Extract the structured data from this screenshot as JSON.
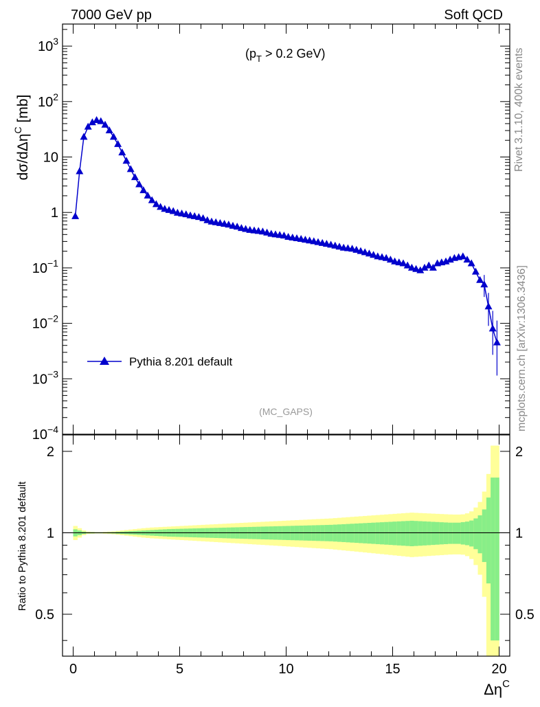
{
  "header": {
    "left": "7000 GeV pp",
    "right": "Soft QCD"
  },
  "side_text": {
    "rivet": "Rivet 3.1.10,  400k events",
    "mcplots": "mcplots.cern.ch [arXiv:1306.3436]"
  },
  "chart_data": [
    {
      "type": "line",
      "title": "",
      "annotation": "(p_T > 0.2 GeV)",
      "annotation_parts": {
        "a": "(p",
        "sub": "T",
        "b": " > 0.2 GeV)"
      },
      "analysis_label": "(MC_GAPS)",
      "ylabel": "dσ/dΔη^C [mb]",
      "ylabel_parts": {
        "main": "dσ/dΔη",
        "sup": "C",
        "unit": " [mb]"
      },
      "yscale": "log",
      "ylim": [
        0.0001,
        2500
      ],
      "xlim": [
        -0.5,
        20.5
      ],
      "y_ticks": [
        {
          "value": 1000,
          "base": "10",
          "exp": "3"
        },
        {
          "value": 100,
          "base": "10",
          "exp": "2"
        },
        {
          "value": 10,
          "base": "10",
          "exp": ""
        },
        {
          "value": 1,
          "base": "1",
          "exp": ""
        },
        {
          "value": 0.1,
          "base": "10",
          "exp": "−1"
        },
        {
          "value": 0.01,
          "base": "10",
          "exp": "−2"
        },
        {
          "value": 0.001,
          "base": "10",
          "exp": "−3"
        },
        {
          "value": 0.0001,
          "base": "10",
          "exp": "−4"
        }
      ],
      "legend_position": "bottom-left",
      "series": [
        {
          "name": "Pythia 8.201 default",
          "color": "#0000cc",
          "marker": "triangle",
          "x": [
            0.1,
            0.3,
            0.5,
            0.7,
            0.9,
            1.1,
            1.3,
            1.5,
            1.7,
            1.9,
            2.1,
            2.3,
            2.5,
            2.7,
            2.9,
            3.1,
            3.3,
            3.5,
            3.7,
            3.9,
            4.1,
            4.3,
            4.5,
            4.7,
            4.9,
            5.1,
            5.3,
            5.5,
            5.7,
            5.9,
            6.1,
            6.3,
            6.5,
            6.7,
            6.9,
            7.1,
            7.3,
            7.5,
            7.7,
            7.9,
            8.1,
            8.3,
            8.5,
            8.7,
            8.9,
            9.1,
            9.3,
            9.5,
            9.7,
            9.9,
            10.1,
            10.3,
            10.5,
            10.7,
            10.9,
            11.1,
            11.3,
            11.5,
            11.7,
            11.9,
            12.1,
            12.3,
            12.5,
            12.7,
            12.9,
            13.1,
            13.3,
            13.5,
            13.7,
            13.9,
            14.1,
            14.3,
            14.5,
            14.7,
            14.9,
            15.1,
            15.3,
            15.5,
            15.7,
            15.9,
            16.1,
            16.3,
            16.5,
            16.7,
            16.9,
            17.1,
            17.3,
            17.5,
            17.7,
            17.9,
            18.1,
            18.3,
            18.5,
            18.7,
            18.9,
            19.1,
            19.3,
            19.5,
            19.7,
            19.9
          ],
          "y": [
            0.85,
            5.5,
            23,
            35,
            42,
            46,
            44,
            38,
            30,
            23,
            17,
            12,
            8.5,
            6,
            4.3,
            3.2,
            2.5,
            2.0,
            1.65,
            1.4,
            1.25,
            1.15,
            1.1,
            1.05,
            0.98,
            0.95,
            0.92,
            0.88,
            0.85,
            0.82,
            0.78,
            0.72,
            0.68,
            0.66,
            0.64,
            0.62,
            0.6,
            0.57,
            0.55,
            0.52,
            0.5,
            0.48,
            0.47,
            0.46,
            0.45,
            0.43,
            0.41,
            0.4,
            0.39,
            0.38,
            0.36,
            0.35,
            0.34,
            0.33,
            0.32,
            0.31,
            0.3,
            0.29,
            0.28,
            0.27,
            0.26,
            0.25,
            0.24,
            0.23,
            0.225,
            0.22,
            0.21,
            0.2,
            0.19,
            0.18,
            0.17,
            0.16,
            0.155,
            0.15,
            0.14,
            0.13,
            0.125,
            0.12,
            0.11,
            0.1,
            0.095,
            0.09,
            0.1,
            0.11,
            0.1,
            0.12,
            0.125,
            0.13,
            0.14,
            0.15,
            0.155,
            0.16,
            0.14,
            0.12,
            0.085,
            0.06,
            0.05,
            0.02,
            0.008,
            0.0045
          ]
        }
      ]
    },
    {
      "type": "area",
      "ylabel": "Ratio to Pythia 8.201 default",
      "xlabel": "Δη^C",
      "xlabel_parts": {
        "main": "Δη",
        "sup": "C"
      },
      "ylim": [
        0.35,
        2.3
      ],
      "xlim": [
        -0.5,
        20.5
      ],
      "x_ticks": [
        0,
        5,
        10,
        15,
        20
      ],
      "y_ticks": [
        0.5,
        1,
        2
      ],
      "reference_line": 1,
      "band_colors": {
        "outer": "#ffff99",
        "inner": "#88ee88"
      },
      "bins_x": [
        0.1,
        0.3,
        0.5,
        0.7,
        0.9,
        1.1,
        1.3,
        1.5,
        1.7,
        1.9,
        2.1,
        2.3,
        2.5,
        2.7,
        2.9,
        3.1,
        3.3,
        3.5,
        3.7,
        3.9,
        4.1,
        4.3,
        4.5,
        4.7,
        4.9,
        5.1,
        5.3,
        5.5,
        5.7,
        5.9,
        6.1,
        6.3,
        6.5,
        6.7,
        6.9,
        7.1,
        7.3,
        7.5,
        7.7,
        7.9,
        8.1,
        8.3,
        8.5,
        8.7,
        8.9,
        9.1,
        9.3,
        9.5,
        9.7,
        9.9,
        10.1,
        10.3,
        10.5,
        10.7,
        10.9,
        11.1,
        11.3,
        11.5,
        11.7,
        11.9,
        12.1,
        12.3,
        12.5,
        12.7,
        12.9,
        13.1,
        13.3,
        13.5,
        13.7,
        13.9,
        14.1,
        14.3,
        14.5,
        14.7,
        14.9,
        15.1,
        15.3,
        15.5,
        15.7,
        15.9,
        16.1,
        16.3,
        16.5,
        16.7,
        16.9,
        17.1,
        17.3,
        17.5,
        17.7,
        17.9,
        18.1,
        18.3,
        18.5,
        18.7,
        18.9,
        19.1,
        19.3,
        19.5,
        19.7,
        19.9
      ],
      "inner_band": [
        0.03,
        0.02,
        0.01,
        0.005,
        0.005,
        0.004,
        0.004,
        0.004,
        0.005,
        0.006,
        0.008,
        0.01,
        0.012,
        0.014,
        0.016,
        0.018,
        0.02,
        0.022,
        0.024,
        0.026,
        0.028,
        0.03,
        0.032,
        0.033,
        0.034,
        0.035,
        0.036,
        0.037,
        0.038,
        0.039,
        0.04,
        0.041,
        0.042,
        0.043,
        0.044,
        0.045,
        0.046,
        0.047,
        0.048,
        0.049,
        0.05,
        0.051,
        0.052,
        0.053,
        0.054,
        0.055,
        0.056,
        0.057,
        0.058,
        0.059,
        0.06,
        0.061,
        0.062,
        0.063,
        0.064,
        0.065,
        0.066,
        0.067,
        0.068,
        0.069,
        0.07,
        0.072,
        0.074,
        0.076,
        0.078,
        0.08,
        0.082,
        0.084,
        0.086,
        0.088,
        0.09,
        0.092,
        0.094,
        0.096,
        0.098,
        0.1,
        0.102,
        0.104,
        0.106,
        0.108,
        0.106,
        0.104,
        0.102,
        0.1,
        0.098,
        0.096,
        0.094,
        0.092,
        0.09,
        0.09,
        0.09,
        0.095,
        0.1,
        0.11,
        0.13,
        0.16,
        0.22,
        0.35,
        0.6,
        0.6
      ],
      "outer_band": [
        0.06,
        0.04,
        0.02,
        0.01,
        0.008,
        0.006,
        0.006,
        0.008,
        0.01,
        0.012,
        0.016,
        0.02,
        0.024,
        0.028,
        0.032,
        0.036,
        0.04,
        0.043,
        0.046,
        0.048,
        0.05,
        0.052,
        0.054,
        0.056,
        0.058,
        0.06,
        0.062,
        0.064,
        0.066,
        0.068,
        0.07,
        0.072,
        0.074,
        0.076,
        0.078,
        0.08,
        0.082,
        0.084,
        0.086,
        0.088,
        0.09,
        0.092,
        0.094,
        0.096,
        0.098,
        0.1,
        0.102,
        0.104,
        0.106,
        0.108,
        0.11,
        0.112,
        0.114,
        0.116,
        0.118,
        0.12,
        0.122,
        0.124,
        0.126,
        0.128,
        0.13,
        0.133,
        0.136,
        0.139,
        0.142,
        0.145,
        0.148,
        0.151,
        0.154,
        0.157,
        0.16,
        0.163,
        0.166,
        0.169,
        0.172,
        0.175,
        0.178,
        0.181,
        0.184,
        0.187,
        0.185,
        0.183,
        0.181,
        0.179,
        0.177,
        0.175,
        0.173,
        0.171,
        0.169,
        0.168,
        0.168,
        0.17,
        0.18,
        0.2,
        0.24,
        0.3,
        0.42,
        0.65,
        1.1,
        1.1
      ]
    }
  ]
}
